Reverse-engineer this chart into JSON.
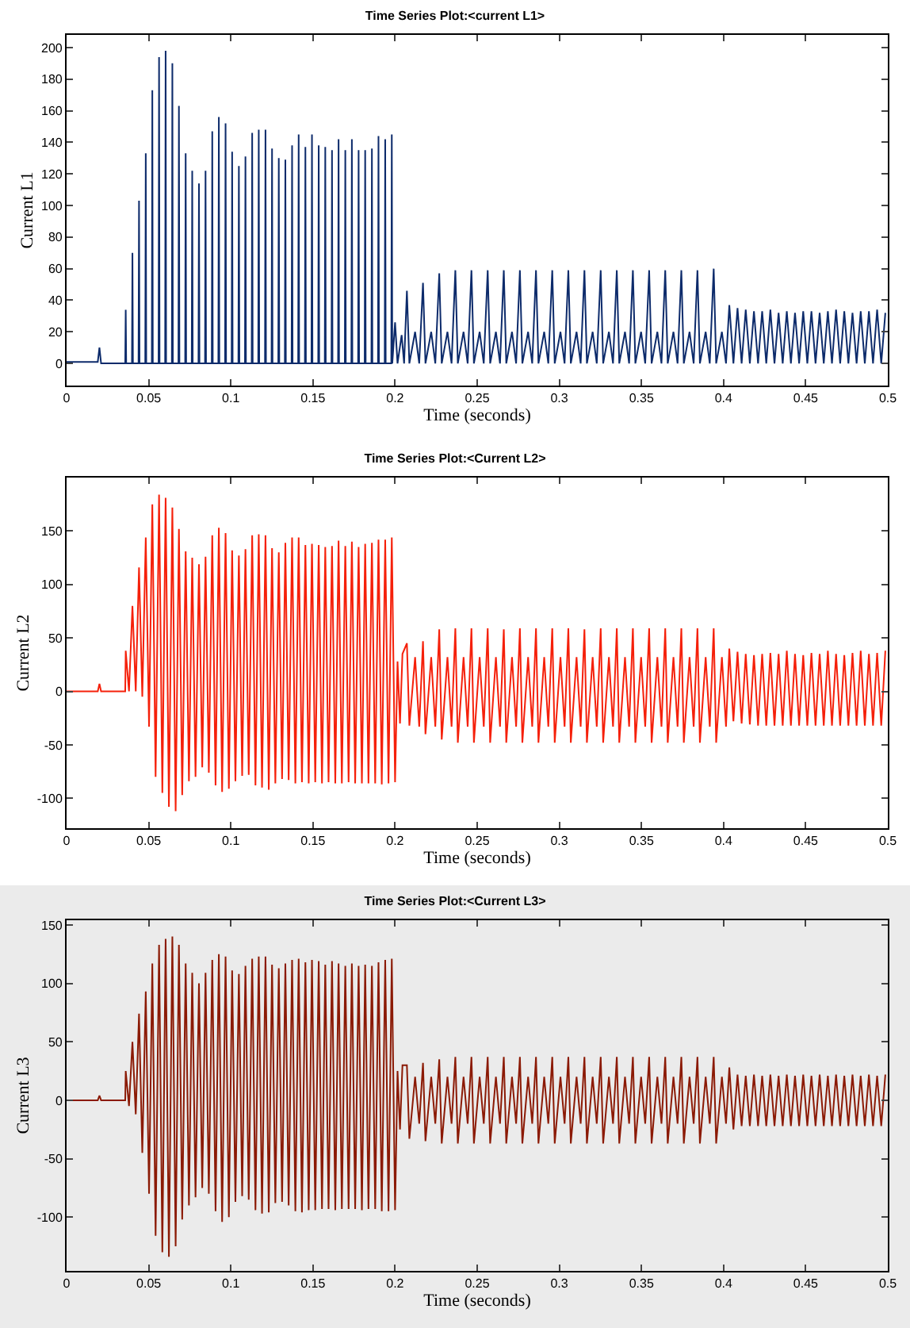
{
  "chart_data": [
    {
      "type": "line",
      "title": "Time Series Plot:<current L1>",
      "xlabel": "Time (seconds)",
      "ylabel": "Current L1",
      "xlim": [
        0,
        0.5
      ],
      "xticks": [
        0,
        0.05,
        0.1,
        0.15,
        0.2,
        0.25,
        0.3,
        0.35,
        0.4,
        0.45,
        0.5
      ],
      "ylim": [
        -14,
        208
      ],
      "yticks": [
        0,
        20,
        40,
        60,
        80,
        100,
        120,
        140,
        160,
        180,
        200
      ],
      "x": [
        0,
        0.019,
        0.02,
        0.021,
        0.0357,
        0.036,
        0.0363,
        0.0398,
        0.0401,
        0.0404,
        0.0438,
        0.0441,
        0.0444,
        0.0479,
        0.0482,
        0.0485,
        0.0519,
        0.0522,
        0.0525,
        0.056,
        0.0563,
        0.0566,
        0.06,
        0.0603,
        0.0606,
        0.0641,
        0.0644,
        0.0647,
        0.0681,
        0.0684,
        0.0687,
        0.0722,
        0.0725,
        0.0728,
        0.0762,
        0.0765,
        0.0768,
        0.0803,
        0.0806,
        0.0809,
        0.0843,
        0.0846,
        0.0849,
        0.0884,
        0.0887,
        0.089,
        0.0924,
        0.0927,
        0.093,
        0.0965,
        0.0968,
        0.0971,
        0.1005,
        0.1008,
        0.1011,
        0.1046,
        0.1049,
        0.1052,
        0.1086,
        0.1089,
        0.1092,
        0.1127,
        0.113,
        0.1133,
        0.1167,
        0.117,
        0.1173,
        0.1208,
        0.1211,
        0.1214,
        0.1248,
        0.1251,
        0.1254,
        0.1289,
        0.1292,
        0.1295,
        0.1329,
        0.1332,
        0.1335,
        0.137,
        0.1373,
        0.1376,
        0.141,
        0.1413,
        0.1416,
        0.1451,
        0.1454,
        0.1457,
        0.1491,
        0.1494,
        0.1497,
        0.1532,
        0.1535,
        0.1538,
        0.1572,
        0.1575,
        0.1578,
        0.1613,
        0.1616,
        0.1619,
        0.1653,
        0.1656,
        0.1659,
        0.1694,
        0.1697,
        0.17,
        0.1734,
        0.1737,
        0.174,
        0.1775,
        0.1778,
        0.1781,
        0.1815,
        0.1818,
        0.1821,
        0.1856,
        0.1859,
        0.1862,
        0.1896,
        0.1899,
        0.1902,
        0.1937,
        0.194,
        0.1943,
        0.1977,
        0.198,
        0.1983,
        0.2,
        0.2015,
        0.204,
        0.2055,
        0.2072,
        0.2087,
        0.2122,
        0.2147,
        0.217,
        0.2185,
        0.222,
        0.2245,
        0.2269,
        0.2284,
        0.2319,
        0.2344,
        0.2367,
        0.2382,
        0.2417,
        0.2442,
        0.2465,
        0.248,
        0.2515,
        0.254,
        0.2564,
        0.2579,
        0.2614,
        0.2639,
        0.2662,
        0.2677,
        0.2712,
        0.2737,
        0.276,
        0.2775,
        0.281,
        0.2835,
        0.2858,
        0.2873,
        0.2908,
        0.2933,
        0.2957,
        0.2972,
        0.3007,
        0.3032,
        0.3055,
        0.307,
        0.3105,
        0.313,
        0.3153,
        0.3168,
        0.3203,
        0.3228,
        0.3252,
        0.3267,
        0.3302,
        0.3327,
        0.335,
        0.3365,
        0.34,
        0.3425,
        0.3448,
        0.3463,
        0.3498,
        0.3523,
        0.3547,
        0.3562,
        0.3597,
        0.3622,
        0.3645,
        0.366,
        0.3695,
        0.372,
        0.3743,
        0.3758,
        0.3793,
        0.3818,
        0.3841,
        0.3856,
        0.3891,
        0.3916,
        0.394,
        0.3955,
        0.399,
        0.4015,
        0.4035,
        0.406,
        0.4085,
        0.411,
        0.4135,
        0.416,
        0.4185,
        0.421,
        0.4235,
        0.426,
        0.4285,
        0.431,
        0.4335,
        0.436,
        0.4385,
        0.441,
        0.4435,
        0.446,
        0.4485,
        0.451,
        0.4535,
        0.456,
        0.4585,
        0.461,
        0.4635,
        0.466,
        0.4685,
        0.471,
        0.4735,
        0.476,
        0.4785,
        0.481,
        0.4835,
        0.486,
        0.4885,
        0.491,
        0.4935,
        0.496,
        0.4985
      ],
      "series": [
        {
          "color": "#0d2b6b",
          "values": [
            1,
            1,
            10,
            0,
            0,
            34,
            0,
            0,
            70,
            0,
            0,
            103,
            0,
            0,
            133,
            0,
            0,
            173,
            0,
            0,
            194,
            0,
            0,
            198,
            0,
            0,
            190,
            0,
            0,
            163,
            0,
            0,
            133,
            0,
            0,
            122,
            0,
            0,
            114,
            0,
            0,
            122,
            0,
            0,
            147,
            0,
            0,
            156,
            0,
            0,
            152,
            0,
            0,
            134,
            0,
            0,
            125,
            0,
            0,
            131,
            0,
            0,
            146,
            0,
            0,
            148,
            0,
            0,
            148,
            0,
            0,
            136,
            0,
            0,
            130,
            0,
            0,
            129,
            0,
            0,
            138,
            0,
            0,
            145,
            0,
            0,
            137,
            0,
            0,
            145,
            0,
            0,
            138,
            0,
            0,
            137,
            0,
            0,
            135,
            0,
            0,
            142,
            0,
            0,
            135,
            0,
            0,
            142,
            0,
            0,
            135,
            0,
            0,
            135,
            0,
            0,
            136,
            0,
            0,
            144,
            0,
            0,
            142,
            0,
            0,
            145,
            0,
            26,
            0,
            18,
            0,
            46,
            0,
            20,
            0,
            51,
            0,
            20,
            0,
            57,
            0,
            20,
            0,
            59,
            0,
            20,
            0,
            59,
            0,
            20,
            0,
            59,
            0,
            20,
            0,
            59,
            0,
            20,
            0,
            59,
            0,
            20,
            0,
            59,
            0,
            20,
            0,
            59,
            0,
            20,
            0,
            59,
            0,
            20,
            0,
            59,
            0,
            20,
            0,
            59,
            0,
            20,
            0,
            59,
            0,
            20,
            0,
            59,
            0,
            20,
            0,
            59,
            0,
            20,
            0,
            59,
            0,
            20,
            0,
            59,
            0,
            20,
            0,
            59,
            0,
            20,
            0,
            60,
            0,
            20,
            0,
            37,
            0,
            35,
            0,
            34,
            0,
            33,
            0,
            33,
            0,
            34,
            0,
            32,
            0,
            33,
            0,
            32,
            0,
            33,
            0,
            33,
            0,
            32,
            0,
            33,
            0,
            34,
            0,
            33,
            0,
            32,
            0,
            33,
            0,
            33,
            0,
            34,
            0,
            32
          ]
        }
      ]
    },
    {
      "type": "line",
      "title": "Time Series Plot:<Current L2>",
      "xlabel": "Time (seconds)",
      "ylabel": "Current L2",
      "xlim": [
        0,
        0.5
      ],
      "xticks": [
        0,
        0.05,
        0.1,
        0.15,
        0.2,
        0.25,
        0.3,
        0.35,
        0.4,
        0.45,
        0.5
      ],
      "ylim": [
        -128,
        200
      ],
      "yticks": [
        -100,
        -50,
        0,
        50,
        100,
        150
      ],
      "x": [
        0,
        0.019,
        0.02,
        0.021,
        0.0357,
        0.036,
        0.038,
        0.0401,
        0.0421,
        0.0441,
        0.0461,
        0.0482,
        0.0502,
        0.0522,
        0.0542,
        0.0563,
        0.0583,
        0.0603,
        0.0623,
        0.0644,
        0.0664,
        0.0684,
        0.0704,
        0.0725,
        0.0745,
        0.0765,
        0.0785,
        0.0806,
        0.0826,
        0.0846,
        0.0866,
        0.0887,
        0.0907,
        0.0927,
        0.0947,
        0.0968,
        0.0988,
        0.1008,
        0.1028,
        0.1049,
        0.1069,
        0.1089,
        0.1109,
        0.113,
        0.115,
        0.117,
        0.119,
        0.1211,
        0.1231,
        0.1251,
        0.1271,
        0.1292,
        0.1312,
        0.1332,
        0.1352,
        0.1373,
        0.1393,
        0.1413,
        0.1433,
        0.1454,
        0.1474,
        0.1494,
        0.1514,
        0.1535,
        0.1555,
        0.1575,
        0.1595,
        0.1616,
        0.1636,
        0.1656,
        0.1676,
        0.1697,
        0.1717,
        0.1737,
        0.1757,
        0.1778,
        0.1798,
        0.1818,
        0.1838,
        0.1859,
        0.1879,
        0.1899,
        0.1919,
        0.194,
        0.196,
        0.198,
        0.2,
        0.2015,
        0.203,
        0.2045,
        0.2072,
        0.2087,
        0.2122,
        0.2147,
        0.217,
        0.2185,
        0.222,
        0.2245,
        0.2269,
        0.2284,
        0.2319,
        0.2344,
        0.2367,
        0.2382,
        0.2417,
        0.2442,
        0.2465,
        0.248,
        0.2515,
        0.254,
        0.2564,
        0.2579,
        0.2614,
        0.2639,
        0.2662,
        0.2677,
        0.2712,
        0.2737,
        0.276,
        0.2775,
        0.281,
        0.2835,
        0.2858,
        0.2873,
        0.2908,
        0.2933,
        0.2957,
        0.2972,
        0.3007,
        0.3032,
        0.3055,
        0.307,
        0.3105,
        0.313,
        0.3153,
        0.3168,
        0.3203,
        0.3228,
        0.3252,
        0.3267,
        0.3302,
        0.3327,
        0.335,
        0.3365,
        0.34,
        0.3425,
        0.3448,
        0.3463,
        0.3498,
        0.3523,
        0.3547,
        0.3562,
        0.3597,
        0.3622,
        0.3645,
        0.366,
        0.3695,
        0.372,
        0.3743,
        0.3758,
        0.3793,
        0.3818,
        0.3841,
        0.3856,
        0.3891,
        0.3916,
        0.394,
        0.3955,
        0.399,
        0.4015,
        0.4035,
        0.406,
        0.4085,
        0.411,
        0.4135,
        0.416,
        0.4185,
        0.421,
        0.4235,
        0.426,
        0.4285,
        0.431,
        0.4335,
        0.436,
        0.4385,
        0.441,
        0.4435,
        0.446,
        0.4485,
        0.451,
        0.4535,
        0.456,
        0.4585,
        0.461,
        0.4635,
        0.466,
        0.4685,
        0.471,
        0.4735,
        0.476,
        0.4785,
        0.481,
        0.4835,
        0.486,
        0.4885,
        0.491,
        0.4935,
        0.496,
        0.4985
      ],
      "series": [
        {
          "color": "#f5200a",
          "values": [
            0,
            0,
            7,
            0,
            0,
            38,
            0,
            80,
            0,
            116,
            -5,
            144,
            -33,
            175,
            -80,
            184,
            -95,
            181,
            -108,
            172,
            -112,
            152,
            -97,
            131,
            -84,
            125,
            -80,
            119,
            -71,
            126,
            -76,
            146,
            -88,
            153,
            -94,
            148,
            -91,
            132,
            -84,
            127,
            -79,
            133,
            -78,
            146,
            -88,
            147,
            -90,
            146,
            -92,
            134,
            -86,
            130,
            -82,
            139,
            -83,
            144,
            -86,
            144,
            -85,
            137,
            -86,
            138,
            -85,
            137,
            -86,
            135,
            -85,
            136,
            -86,
            141,
            -86,
            136,
            -85,
            140,
            -86,
            135,
            -86,
            138,
            -86,
            139,
            -86,
            142,
            -87,
            142,
            -86,
            144,
            -85,
            28,
            -30,
            35,
            45,
            -32,
            32,
            -33,
            47,
            -40,
            32,
            -33,
            58,
            -45,
            32,
            -33,
            59,
            -48,
            32,
            -33,
            59,
            -48,
            32,
            -33,
            59,
            -48,
            32,
            -33,
            58,
            -48,
            32,
            -33,
            59,
            -48,
            32,
            -33,
            59,
            -48,
            32,
            -33,
            59,
            -48,
            32,
            -33,
            59,
            -48,
            32,
            -33,
            58,
            -48,
            32,
            -33,
            59,
            -48,
            32,
            -33,
            59,
            -48,
            32,
            -33,
            59,
            -48,
            32,
            -33,
            59,
            -48,
            32,
            -33,
            59,
            -48,
            32,
            -33,
            59,
            -48,
            32,
            -33,
            59,
            -48,
            32,
            -33,
            59,
            -48,
            32,
            -33,
            40,
            -28,
            37,
            -30,
            35,
            -31,
            34,
            -32,
            35,
            -32,
            36,
            -32,
            35,
            -32,
            38,
            -32,
            35,
            -32,
            34,
            -32,
            36,
            -32,
            35,
            -32,
            38,
            -32,
            35,
            -32,
            34,
            -32,
            36,
            -32,
            38,
            -32,
            35,
            -32,
            36,
            -32,
            38
          ]
        }
      ]
    },
    {
      "type": "line",
      "title": "Time Series Plot:<Current L3>",
      "xlabel": "Time (seconds)",
      "ylabel": "Current L3",
      "xlim": [
        0,
        0.5
      ],
      "xticks": [
        0,
        0.05,
        0.1,
        0.15,
        0.2,
        0.25,
        0.3,
        0.35,
        0.4,
        0.45,
        0.5
      ],
      "ylim": [
        -146,
        154
      ],
      "yticks": [
        -100,
        -50,
        0,
        50,
        100,
        150
      ],
      "x": [
        0,
        0.019,
        0.02,
        0.021,
        0.0357,
        0.036,
        0.038,
        0.0401,
        0.0421,
        0.0441,
        0.0461,
        0.0482,
        0.0502,
        0.0522,
        0.0542,
        0.0563,
        0.0583,
        0.0603,
        0.0623,
        0.0644,
        0.0664,
        0.0684,
        0.0704,
        0.0725,
        0.0745,
        0.0765,
        0.0785,
        0.0806,
        0.0826,
        0.0846,
        0.0866,
        0.0887,
        0.0907,
        0.0927,
        0.0947,
        0.0968,
        0.0988,
        0.1008,
        0.1028,
        0.1049,
        0.1069,
        0.1089,
        0.1109,
        0.113,
        0.115,
        0.117,
        0.119,
        0.1211,
        0.1231,
        0.1251,
        0.1271,
        0.1292,
        0.1312,
        0.1332,
        0.1352,
        0.1373,
        0.1393,
        0.1413,
        0.1433,
        0.1454,
        0.1474,
        0.1494,
        0.1514,
        0.1535,
        0.1555,
        0.1575,
        0.1595,
        0.1616,
        0.1636,
        0.1656,
        0.1676,
        0.1697,
        0.1717,
        0.1737,
        0.1757,
        0.1778,
        0.1798,
        0.1818,
        0.1838,
        0.1859,
        0.1879,
        0.1899,
        0.1919,
        0.194,
        0.196,
        0.198,
        0.2,
        0.2015,
        0.203,
        0.2045,
        0.2072,
        0.2087,
        0.2122,
        0.2147,
        0.217,
        0.2185,
        0.222,
        0.2245,
        0.2269,
        0.2284,
        0.2319,
        0.2344,
        0.2367,
        0.2382,
        0.2417,
        0.2442,
        0.2465,
        0.248,
        0.2515,
        0.254,
        0.2564,
        0.2579,
        0.2614,
        0.2639,
        0.2662,
        0.2677,
        0.2712,
        0.2737,
        0.276,
        0.2775,
        0.281,
        0.2835,
        0.2858,
        0.2873,
        0.2908,
        0.2933,
        0.2957,
        0.2972,
        0.3007,
        0.3032,
        0.3055,
        0.307,
        0.3105,
        0.313,
        0.3153,
        0.3168,
        0.3203,
        0.3228,
        0.3252,
        0.3267,
        0.3302,
        0.3327,
        0.335,
        0.3365,
        0.34,
        0.3425,
        0.3448,
        0.3463,
        0.3498,
        0.3523,
        0.3547,
        0.3562,
        0.3597,
        0.3622,
        0.3645,
        0.366,
        0.3695,
        0.372,
        0.3743,
        0.3758,
        0.3793,
        0.3818,
        0.3841,
        0.3856,
        0.3891,
        0.3916,
        0.394,
        0.3955,
        0.399,
        0.4015,
        0.4035,
        0.406,
        0.4085,
        0.411,
        0.4135,
        0.416,
        0.4185,
        0.421,
        0.4235,
        0.426,
        0.4285,
        0.431,
        0.4335,
        0.436,
        0.4385,
        0.441,
        0.4435,
        0.446,
        0.4485,
        0.451,
        0.4535,
        0.456,
        0.4585,
        0.461,
        0.4635,
        0.466,
        0.4685,
        0.471,
        0.4735,
        0.476,
        0.4785,
        0.481,
        0.4835,
        0.486,
        0.4885,
        0.491,
        0.4935,
        0.496,
        0.4985
      ],
      "series": [
        {
          "color": "#8b1a05",
          "values": [
            0,
            0,
            4,
            0,
            0,
            25,
            -5,
            50,
            -12,
            74,
            -45,
            93,
            -80,
            117,
            -116,
            133,
            -130,
            138,
            -134,
            140,
            -125,
            133,
            -102,
            117,
            -90,
            109,
            -83,
            100,
            -75,
            109,
            -80,
            120,
            -95,
            125,
            -104,
            123,
            -100,
            111,
            -87,
            108,
            -82,
            115,
            -85,
            121,
            -94,
            123,
            -97,
            123,
            -96,
            116,
            -88,
            113,
            -87,
            117,
            -90,
            120,
            -95,
            121,
            -96,
            118,
            -94,
            120,
            -94,
            119,
            -93,
            116,
            -93,
            119,
            -94,
            117,
            -93,
            115,
            -93,
            117,
            -93,
            115,
            -94,
            116,
            -93,
            115,
            -93,
            118,
            -95,
            120,
            -95,
            121,
            -94,
            25,
            -25,
            30,
            30,
            -33,
            20,
            -20,
            32,
            -35,
            20,
            -20,
            35,
            -37,
            20,
            -20,
            37,
            -37,
            20,
            -20,
            37,
            -37,
            20,
            -20,
            37,
            -37,
            20,
            -20,
            37,
            -37,
            20,
            -20,
            37,
            -37,
            20,
            -20,
            37,
            -37,
            20,
            -20,
            37,
            -37,
            20,
            -20,
            37,
            -37,
            20,
            -20,
            37,
            -37,
            20,
            -20,
            37,
            -37,
            20,
            -20,
            37,
            -37,
            20,
            -20,
            37,
            -37,
            20,
            -20,
            37,
            -37,
            20,
            -20,
            37,
            -37,
            20,
            -20,
            37,
            -37,
            20,
            -20,
            37,
            -37,
            20,
            -20,
            37,
            -37,
            20,
            -20,
            28,
            -25,
            22,
            -22,
            21,
            -22,
            22,
            -22,
            21,
            -22,
            22,
            -22,
            21,
            -22,
            22,
            -22,
            21,
            -22,
            22,
            -22,
            21,
            -22,
            22,
            -22,
            21,
            -22,
            22,
            -22,
            21,
            -22,
            22,
            -22,
            21,
            -22,
            22,
            -22,
            21,
            -22,
            22
          ]
        }
      ]
    }
  ]
}
